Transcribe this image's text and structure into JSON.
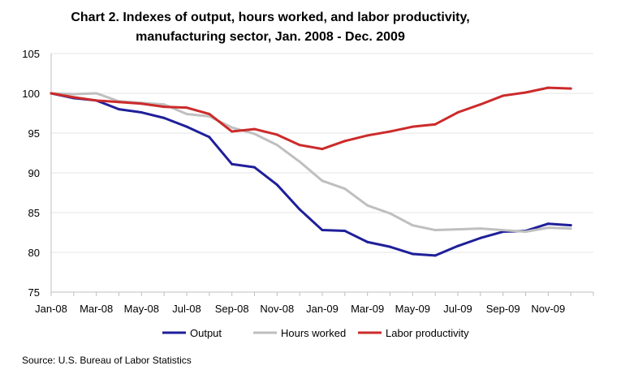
{
  "chart_data": {
    "type": "line",
    "title": "Chart 2. Indexes of output, hours worked, and labor productivity,",
    "subtitle": "manufacturing sector, Jan. 2008 - Dec. 2009",
    "xlabel": "",
    "ylabel": "",
    "ylim": [
      75,
      105
    ],
    "y_ticks": [
      "75",
      "80",
      "85",
      "90",
      "95",
      "100",
      "105"
    ],
    "x_tick_labels": [
      "Jan-08",
      "Mar-08",
      "May-08",
      "Jul-08",
      "Sep-08",
      "Nov-08",
      "Jan-09",
      "Mar-09",
      "May-09",
      "Jul-09",
      "Sep-09",
      "Nov-09"
    ],
    "x": [
      "Jan-08",
      "Feb-08",
      "Mar-08",
      "Apr-08",
      "May-08",
      "Jun-08",
      "Jul-08",
      "Aug-08",
      "Sep-08",
      "Oct-08",
      "Nov-08",
      "Dec-08",
      "Jan-09",
      "Feb-09",
      "Mar-09",
      "Apr-09",
      "May-09",
      "Jun-09",
      "Jul-09",
      "Aug-09",
      "Sep-09",
      "Oct-09",
      "Nov-09",
      "Dec-09"
    ],
    "grid": "horizontal",
    "legend_position": "bottom",
    "series": [
      {
        "name": "Output",
        "color": "#1f1f9a",
        "values": [
          100,
          99.4,
          99.1,
          98.0,
          97.6,
          96.9,
          95.8,
          94.5,
          91.1,
          90.7,
          88.5,
          85.4,
          82.8,
          82.7,
          81.3,
          80.7,
          79.8,
          79.6,
          80.8,
          81.8,
          82.6,
          82.7,
          83.6,
          83.4
        ]
      },
      {
        "name": "Hours worked",
        "color": "#bfbfbf",
        "values": [
          100,
          99.9,
          100.0,
          99.0,
          98.8,
          98.6,
          97.4,
          97.1,
          95.7,
          94.9,
          93.5,
          91.4,
          89.0,
          88.0,
          85.9,
          84.9,
          83.4,
          82.8,
          82.9,
          83.0,
          82.8,
          82.6,
          83.1,
          83.0
        ]
      },
      {
        "name": "Labor productivity",
        "color": "#cc2a2a",
        "values": [
          100,
          99.5,
          99.1,
          98.9,
          98.7,
          98.3,
          98.2,
          97.4,
          95.2,
          95.5,
          94.8,
          93.5,
          93.0,
          94.0,
          94.7,
          95.2,
          95.8,
          96.1,
          97.6,
          98.6,
          99.7,
          100.1,
          100.7,
          100.6
        ]
      }
    ]
  },
  "source": "Source: U.S. Bureau of Labor Statistics"
}
